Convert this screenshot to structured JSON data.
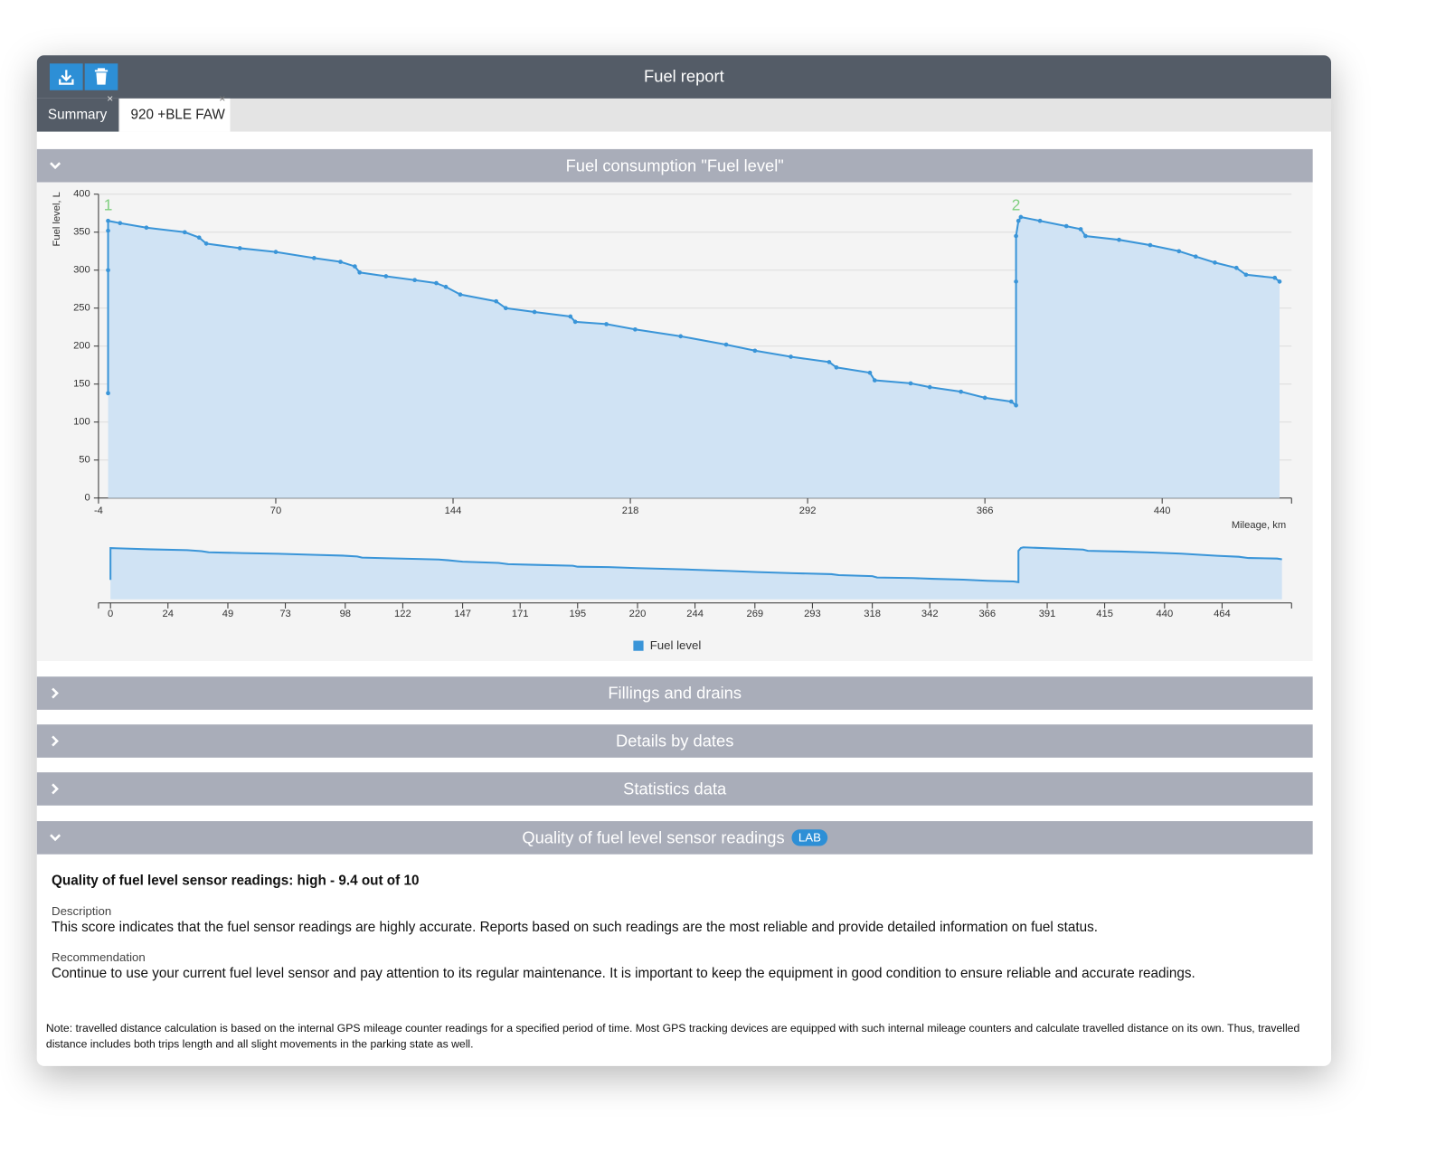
{
  "header": {
    "title": "Fuel report"
  },
  "tabs": [
    "Summary",
    "920 +BLE FAW"
  ],
  "sections": [
    {
      "title": "Fuel consumption \"Fuel level\""
    },
    {
      "title": "Fillings and drains"
    },
    {
      "title": "Details by dates"
    },
    {
      "title": "Statistics data"
    },
    {
      "title": "Quality of fuel level sensor readings",
      "badge": "LAB"
    }
  ],
  "chart_data": {
    "type": "area",
    "y_label": "Fuel level, L",
    "x_label": "Mileage, km",
    "x": [
      0,
      0,
      0,
      0,
      5,
      16,
      32,
      38,
      41,
      55,
      70,
      86,
      97,
      103,
      105,
      116,
      128,
      137,
      141,
      147,
      162,
      166,
      178,
      193,
      195,
      208,
      220,
      239,
      258,
      270,
      285,
      301,
      304,
      318,
      320,
      335,
      343,
      356,
      366,
      377,
      379,
      379,
      379,
      380,
      381,
      389,
      400,
      406,
      408,
      422,
      435,
      447,
      454,
      462,
      471,
      475,
      487,
      489
    ],
    "series": [
      {
        "name": "Fuel level",
        "color": "#3a95d8",
        "values": [
          138,
          300,
          352,
          365,
          362,
          356,
          350,
          343,
          335,
          329,
          324,
          316,
          311,
          305,
          297,
          292,
          287,
          283,
          278,
          268,
          259,
          250,
          245,
          239,
          232,
          229,
          222,
          213,
          202,
          194,
          186,
          179,
          172,
          165,
          155,
          151,
          146,
          140,
          132,
          127,
          122,
          285,
          345,
          365,
          370,
          365,
          358,
          354,
          345,
          340,
          333,
          325,
          318,
          310,
          303,
          294,
          290,
          285
        ]
      }
    ],
    "xlim": [
      -4,
      494
    ],
    "xticks": [
      -4,
      70,
      144,
      218,
      292,
      366,
      440
    ],
    "ylim": [
      0,
      400
    ],
    "yticks": [
      0,
      50,
      100,
      150,
      200,
      250,
      300,
      350,
      400
    ],
    "grid": true,
    "annotations": [
      {
        "label": "1",
        "x": 0
      },
      {
        "label": "2",
        "x": 379
      }
    ],
    "annotation_color": "#7fcf7f",
    "fill_color": "#d0e3f4",
    "navigator": {
      "xlim": [
        -5,
        493
      ],
      "xticks": [
        0,
        24,
        49,
        73,
        98,
        122,
        147,
        171,
        195,
        220,
        244,
        269,
        293,
        318,
        342,
        366,
        391,
        415,
        440,
        464
      ]
    }
  },
  "quality": {
    "heading": "Quality of fuel level sensor readings: high - 9.4 out of 10",
    "description_label": "Description",
    "description": "This score indicates that the fuel sensor readings are highly accurate. Reports based on such readings are the most reliable and provide detailed information on fuel status.",
    "recommendation_label": "Recommendation",
    "recommendation": "Continue to use your current fuel level sensor and pay attention to its regular maintenance. It is important to keep the equipment in good condition to ensure reliable and accurate readings."
  },
  "note": "Note: travelled distance calculation is based on the internal GPS mileage counter readings for a specified period of time. Most GPS tracking devices are equipped with such internal mileage counters and calculate travelled distance on its own. Thus, travelled distance includes both trips length and all slight movements in the parking state as well."
}
